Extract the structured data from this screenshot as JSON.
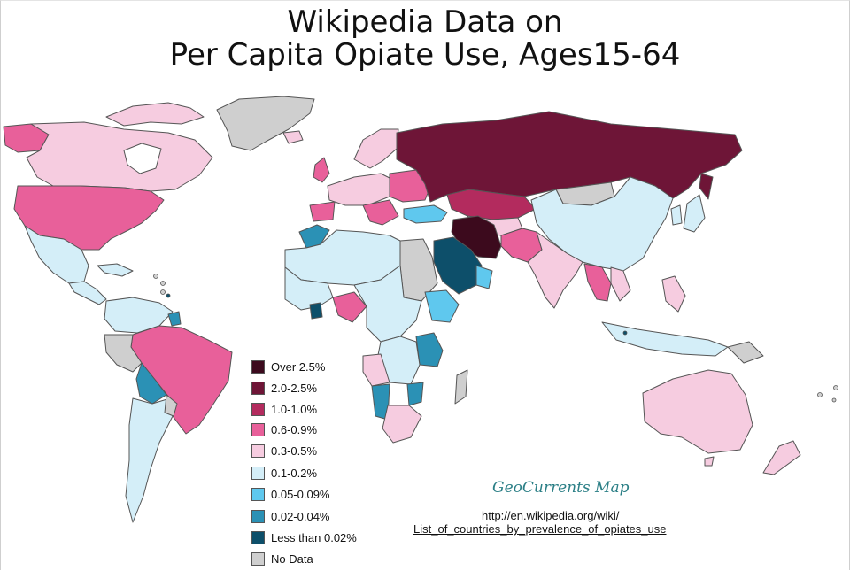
{
  "title": {
    "line1": "Wikipedia Data on",
    "line2": "Per Capita Opiate Use, Ages15-64"
  },
  "legend": [
    {
      "label": "Over 2.5%",
      "color": "#3c0a1d"
    },
    {
      "label": "2.0-2.5%",
      "color": "#6e1537"
    },
    {
      "label": "1.0-1.0%",
      "color": "#b32b5e"
    },
    {
      "label": "0.6-0.9%",
      "color": "#e8609a"
    },
    {
      "label": "0.3-0.5%",
      "color": "#f6cce0"
    },
    {
      "label": "0.1-0.2%",
      "color": "#d4eef8"
    },
    {
      "label": "0.05-0.09%",
      "color": "#5fc8ee"
    },
    {
      "label": "0.02-0.04%",
      "color": "#2b91b5"
    },
    {
      "label": "Less than 0.02%",
      "color": "#0d4f6a"
    },
    {
      "label": "No Data",
      "color": "#cfcfcf"
    }
  ],
  "credit": "GeoCurrents Map",
  "source": {
    "line1": "http://en.wikipedia.org/wiki/",
    "line2": "List_of_countries_by_prevalence_of_opiates_use"
  },
  "colors": {
    "border": "#555555",
    "ocean": "#ffffff"
  }
}
